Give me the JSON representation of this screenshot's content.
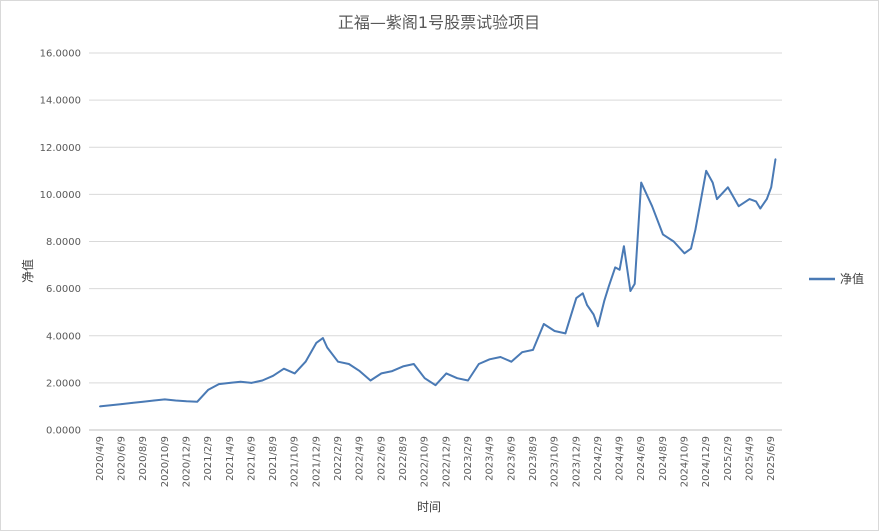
{
  "chart_data": {
    "type": "line",
    "title": "正福—紫阁1号股票试验项目",
    "xlabel": "时间",
    "ylabel": "净值",
    "ylim": [
      0,
      16
    ],
    "yticks": [
      "0.0000",
      "2.0000",
      "4.0000",
      "6.0000",
      "8.0000",
      "10.0000",
      "12.0000",
      "14.0000",
      "16.0000"
    ],
    "categories": [
      "2020/4/9",
      "2020/6/9",
      "2020/8/9",
      "2020/10/9",
      "2020/12/9",
      "2021/2/9",
      "2021/4/9",
      "2021/6/9",
      "2021/8/9",
      "2021/10/9",
      "2021/12/9",
      "2022/2/9",
      "2022/4/9",
      "2022/6/9",
      "2022/8/9",
      "2022/10/9",
      "2022/12/9",
      "2023/2/9",
      "2023/4/9",
      "2023/6/9",
      "2023/8/9",
      "2023/10/9",
      "2023/12/9",
      "2024/2/9",
      "2024/4/9",
      "2024/6/9",
      "2024/8/9",
      "2024/10/9",
      "2024/12/9",
      "2025/2/9",
      "2025/4/9",
      "2025/6/9"
    ],
    "grid": true,
    "legend_position": "right",
    "series": [
      {
        "name": "净值",
        "color": "#4a7ab5",
        "x": [
          0,
          0.5,
          1,
          1.5,
          2,
          2.5,
          3,
          3.5,
          4,
          4.5,
          5,
          5.5,
          6,
          6.5,
          7,
          7.5,
          8,
          8.5,
          9,
          9.5,
          10,
          10.3,
          10.5,
          11,
          11.5,
          12,
          12.5,
          13,
          13.5,
          14,
          14.5,
          15,
          15.5,
          16,
          16.5,
          17,
          17.5,
          18,
          18.5,
          19,
          19.5,
          20,
          20.5,
          21,
          21.5,
          22,
          22.3,
          22.5,
          22.8,
          23,
          23.3,
          23.5,
          23.8,
          24,
          24.2,
          24.5,
          24.7,
          25,
          25.3,
          25.5,
          26,
          26.5,
          27,
          27.3,
          27.5,
          27.8,
          28,
          28.3,
          28.5,
          29,
          29.5,
          30,
          30.3,
          30.5,
          30.8,
          31,
          31.2
        ],
        "values": [
          1.0,
          1.05,
          1.1,
          1.15,
          1.2,
          1.25,
          1.3,
          1.25,
          1.22,
          1.2,
          1.7,
          1.95,
          2.0,
          2.05,
          2.0,
          2.1,
          2.3,
          2.6,
          2.4,
          2.9,
          3.7,
          3.9,
          3.5,
          2.9,
          2.8,
          2.5,
          2.1,
          2.4,
          2.5,
          2.7,
          2.8,
          2.2,
          1.9,
          2.4,
          2.2,
          2.1,
          2.8,
          3.0,
          3.1,
          2.9,
          3.3,
          3.4,
          4.5,
          4.2,
          4.1,
          5.6,
          5.8,
          5.3,
          4.9,
          4.4,
          5.5,
          6.1,
          6.9,
          6.8,
          7.8,
          5.9,
          6.2,
          10.5,
          9.9,
          9.5,
          8.3,
          8.0,
          7.5,
          7.7,
          8.5,
          10.0,
          11.0,
          10.5,
          9.8,
          10.3,
          9.5,
          9.8,
          9.7,
          9.4,
          9.8,
          10.3,
          11.5
        ]
      }
    ]
  }
}
